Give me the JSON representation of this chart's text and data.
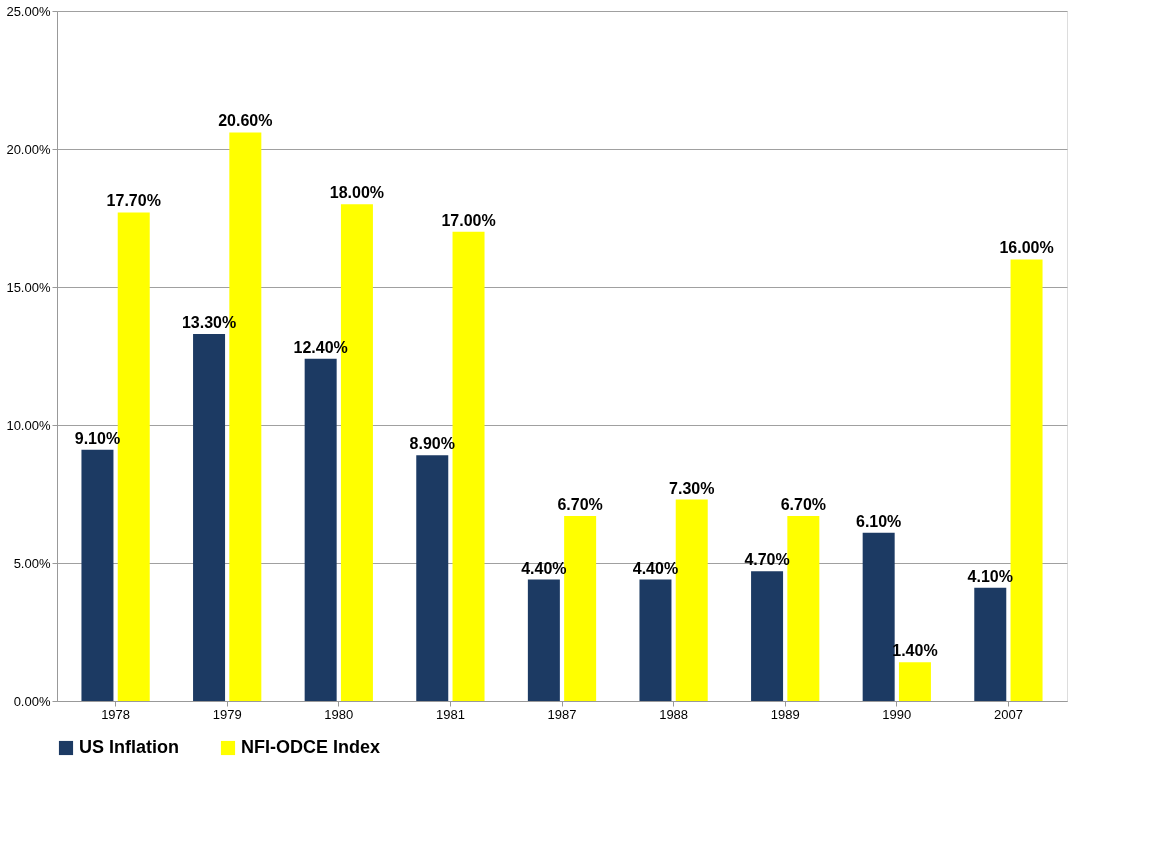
{
  "chart_data": {
    "type": "bar",
    "categories": [
      "1978",
      "1979",
      "1980",
      "1981",
      "1987",
      "1988",
      "1989",
      "1990",
      "2007"
    ],
    "series": [
      {
        "name": "US Inflation",
        "color": "#1c3a63",
        "values": [
          9.1,
          13.3,
          12.4,
          8.9,
          4.4,
          4.4,
          4.7,
          6.1,
          4.1
        ],
        "value_labels": [
          "9.10%",
          "13.30%",
          "12.40%",
          "8.90%",
          "4.40%",
          "4.40%",
          "4.70%",
          "6.10%",
          "4.10%"
        ]
      },
      {
        "name": "NFI-ODCE Index",
        "color": "#ffff00",
        "values": [
          17.7,
          20.6,
          18.0,
          17.0,
          6.7,
          7.3,
          6.7,
          1.4,
          16.0
        ],
        "value_labels": [
          "17.70%",
          "20.60%",
          "18.00%",
          "17.00%",
          "6.70%",
          "7.30%",
          "6.70%",
          "1.40%",
          "16.00%"
        ]
      }
    ],
    "ylim": [
      0,
      25
    ],
    "yticks": [
      {
        "value": 0,
        "label": "0.00%"
      },
      {
        "value": 5,
        "label": "5.00%"
      },
      {
        "value": 10,
        "label": "10.00%"
      },
      {
        "value": 15,
        "label": "15.00%"
      },
      {
        "value": 20,
        "label": "20.00%"
      },
      {
        "value": 25,
        "label": "25.00%"
      }
    ],
    "grid": "y",
    "legend": "bottom"
  }
}
